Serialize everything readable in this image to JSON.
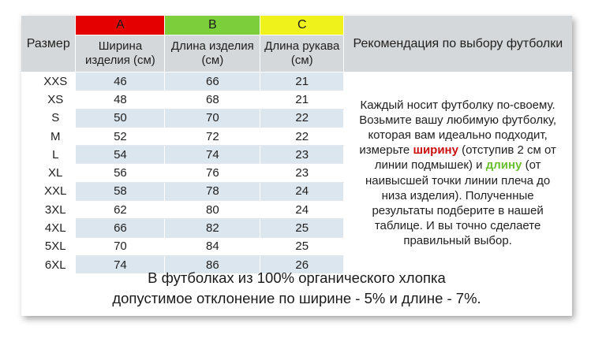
{
  "columns": {
    "label_a": "A",
    "label_b": "B",
    "label_c": "C",
    "size_header": "Размер",
    "width_header": "Ширина изделия (см)",
    "length_header": "Длина изделия (см)",
    "sleeve_header": "Длина рукава (см)",
    "recommendation_header": "Рекомендация по выбору футболки"
  },
  "colors": {
    "label_a": "#e50000",
    "label_b": "#7ccf3b",
    "label_c": "#eff21b",
    "highlight_width": "#cc1010",
    "highlight_length": "#6abf2e"
  },
  "rows": [
    {
      "size": "XXS",
      "width": "46",
      "length": "66",
      "sleeve": "21"
    },
    {
      "size": "XS",
      "width": "48",
      "length": "68",
      "sleeve": "21"
    },
    {
      "size": "S",
      "width": "50",
      "length": "70",
      "sleeve": "22"
    },
    {
      "size": "M",
      "width": "52",
      "length": "72",
      "sleeve": "22"
    },
    {
      "size": "L",
      "width": "54",
      "length": "74",
      "sleeve": "23"
    },
    {
      "size": "XL",
      "width": "56",
      "length": "76",
      "sleeve": "23"
    },
    {
      "size": "XXL",
      "width": "58",
      "length": "78",
      "sleeve": "24"
    },
    {
      "size": "3XL",
      "width": "62",
      "length": "80",
      "sleeve": "24"
    },
    {
      "size": "4XL",
      "width": "66",
      "length": "82",
      "sleeve": "25"
    },
    {
      "size": "5XL",
      "width": "70",
      "length": "84",
      "sleeve": "25"
    },
    {
      "size": "6XL",
      "width": "74",
      "length": "86",
      "sleeve": "26"
    }
  ],
  "recommendation": {
    "part1": "Каждый носит футболку по-своему. Возьмите вашу любимую футболку, которая вам идеально подходит, измерьте",
    "highlight_width": "ширину",
    "part2": "(отступив 2 см от линии подмышек) и",
    "highlight_length": "длину",
    "part3": "(от наивысшей точки линии плеча до низа изделия). Полученные результаты подберите в нашей таблице. И вы точно сделаете правильный выбор."
  },
  "footer": {
    "line1": "В футболках из 100% органического хлопка",
    "line2": "допустимое отклонение по ширине - 5% и длине - 7%."
  }
}
